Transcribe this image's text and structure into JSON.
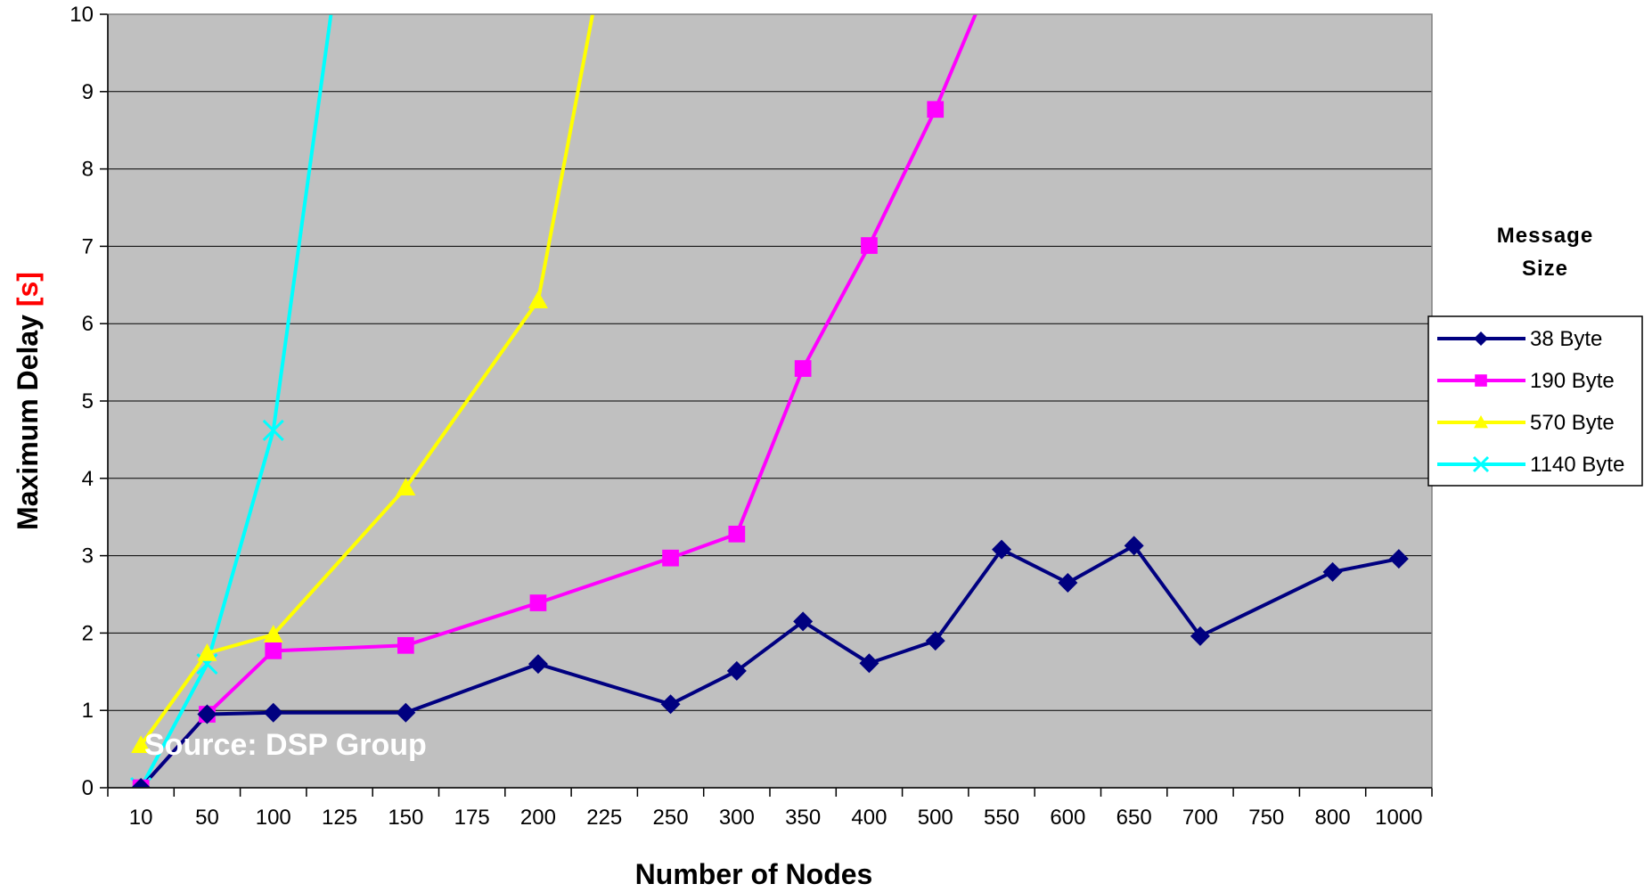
{
  "chart_data": {
    "type": "line",
    "categories": [
      "10",
      "50",
      "100",
      "125",
      "150",
      "175",
      "200",
      "225",
      "250",
      "300",
      "350",
      "400",
      "500",
      "550",
      "600",
      "650",
      "700",
      "750",
      "800",
      "1000"
    ],
    "ylim": [
      0,
      10
    ],
    "yticks": [
      "0",
      "1",
      "2",
      "3",
      "4",
      "5",
      "6",
      "7",
      "8",
      "9",
      "10"
    ],
    "xlabel": "Number of Nodes",
    "ylabel": "Maximum Delay ",
    "ylabel_unit": "[s]",
    "legend_title_line1": "Message",
    "legend_title_line2": "Size",
    "legend_position": "right",
    "grid": "horizontal",
    "annotation": "Source: DSP Group",
    "plot_background": "#c0c0c0",
    "series": [
      {
        "name": "38 Byte",
        "color": "#000080",
        "marker": "diamond",
        "points": [
          {
            "x": "10",
            "y": 0.0
          },
          {
            "x": "50",
            "y": 0.95
          },
          {
            "x": "100",
            "y": 0.97
          },
          {
            "x": "150",
            "y": 0.97
          },
          {
            "x": "200",
            "y": 1.6
          },
          {
            "x": "250",
            "y": 1.08
          },
          {
            "x": "300",
            "y": 1.51
          },
          {
            "x": "350",
            "y": 2.15
          },
          {
            "x": "400",
            "y": 1.61
          },
          {
            "x": "500",
            "y": 1.9
          },
          {
            "x": "550",
            "y": 3.08
          },
          {
            "x": "600",
            "y": 2.65
          },
          {
            "x": "650",
            "y": 3.13
          },
          {
            "x": "700",
            "y": 1.96
          },
          {
            "x": "800",
            "y": 2.79
          },
          {
            "x": "1000",
            "y": 2.96
          }
        ]
      },
      {
        "name": "190 Byte",
        "color": "#ff00ff",
        "marker": "square",
        "points": [
          {
            "x": "10",
            "y": 0.0
          },
          {
            "x": "50",
            "y": 0.95
          },
          {
            "x": "100",
            "y": 1.77
          },
          {
            "x": "150",
            "y": 1.84
          },
          {
            "x": "200",
            "y": 2.39
          },
          {
            "x": "250",
            "y": 2.97
          },
          {
            "x": "300",
            "y": 3.28
          },
          {
            "x": "350",
            "y": 5.42
          },
          {
            "x": "400",
            "y": 7.01
          },
          {
            "x": "500",
            "y": 8.77
          },
          {
            "x": "550",
            "y": 10.8
          }
        ]
      },
      {
        "name": "570 Byte",
        "color": "#ffff00",
        "marker": "triangle",
        "points": [
          {
            "x": "10",
            "y": 0.55
          },
          {
            "x": "50",
            "y": 1.74
          },
          {
            "x": "100",
            "y": 1.98
          },
          {
            "x": "150",
            "y": 3.88
          },
          {
            "x": "200",
            "y": 6.3
          },
          {
            "x": "225",
            "y": 10.8
          }
        ]
      },
      {
        "name": "1140 Byte",
        "color": "#00ffff",
        "marker": "x",
        "points": [
          {
            "x": "10",
            "y": 0.0
          },
          {
            "x": "50",
            "y": 1.6
          },
          {
            "x": "100",
            "y": 4.62
          },
          {
            "x": "125",
            "y": 10.8
          }
        ]
      }
    ]
  }
}
